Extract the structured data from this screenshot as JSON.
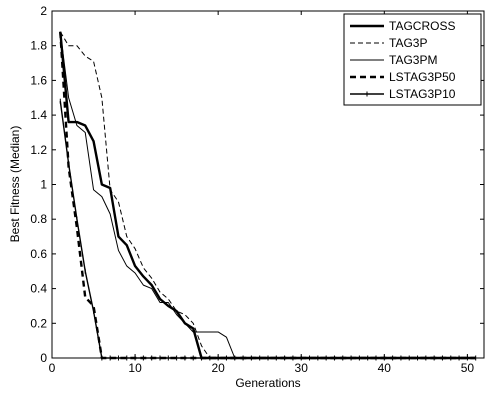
{
  "chart_data": {
    "type": "line",
    "xlabel": "Generations",
    "ylabel": "Best Fitness (Median)",
    "xlim": [
      0,
      52
    ],
    "ylim": [
      0,
      2
    ],
    "x_ticks": [
      0,
      10,
      20,
      30,
      40,
      50
    ],
    "y_ticks": [
      0,
      0.2,
      0.4,
      0.6,
      0.8,
      1,
      1.2,
      1.4,
      1.6,
      1.8,
      2
    ],
    "grid": false,
    "legend_position": "top-right",
    "series": [
      {
        "name": "TAGCROSS",
        "style": "thick-solid",
        "x": [
          1,
          2,
          3,
          4,
          5,
          6,
          7,
          8,
          9,
          10,
          11,
          12,
          13,
          14,
          15,
          16,
          17,
          18,
          19,
          20,
          25,
          30,
          35,
          40,
          45,
          51
        ],
        "y": [
          1.88,
          1.36,
          1.36,
          1.34,
          1.25,
          1.0,
          0.98,
          0.7,
          0.65,
          0.53,
          0.47,
          0.42,
          0.34,
          0.3,
          0.27,
          0.2,
          0.17,
          0.0,
          0.0,
          0.0,
          0.0,
          0.0,
          0.0,
          0.0,
          0.0,
          0.0
        ]
      },
      {
        "name": "TAG3P",
        "style": "dashed",
        "x": [
          1,
          2,
          3,
          4,
          5,
          6,
          7,
          8,
          9,
          10,
          11,
          12,
          13,
          14,
          15,
          16,
          17,
          18,
          19,
          20,
          25,
          30,
          35,
          40,
          45,
          51
        ],
        "y": [
          1.88,
          1.8,
          1.8,
          1.74,
          1.71,
          1.5,
          0.97,
          0.9,
          0.7,
          0.63,
          0.52,
          0.46,
          0.38,
          0.34,
          0.27,
          0.25,
          0.2,
          0.07,
          0.0,
          0.0,
          0.0,
          0.0,
          0.0,
          0.0,
          0.0,
          0.0
        ]
      },
      {
        "name": "TAG3PM",
        "style": "thin-solid",
        "x": [
          1,
          2,
          3,
          4,
          5,
          6,
          7,
          8,
          9,
          10,
          11,
          12,
          13,
          14,
          15,
          16,
          17,
          18,
          19,
          20,
          21,
          22,
          25,
          30,
          35,
          40,
          45,
          51
        ],
        "y": [
          1.88,
          1.5,
          1.34,
          1.3,
          0.97,
          0.93,
          0.83,
          0.62,
          0.53,
          0.49,
          0.42,
          0.4,
          0.32,
          0.32,
          0.25,
          0.2,
          0.15,
          0.15,
          0.15,
          0.15,
          0.12,
          0.0,
          0.0,
          0.0,
          0.0,
          0.0,
          0.0,
          0.0
        ]
      },
      {
        "name": "LSTAG3P50",
        "style": "thick-dashed",
        "x": [
          1,
          2,
          3,
          4,
          5,
          6,
          7,
          8,
          10,
          15,
          20,
          25,
          30,
          35,
          40,
          45,
          51
        ],
        "y": [
          1.88,
          1.1,
          0.75,
          0.35,
          0.3,
          0.0,
          0.0,
          0.0,
          0.0,
          0.0,
          0.0,
          0.0,
          0.0,
          0.0,
          0.0,
          0.0,
          0.0
        ]
      },
      {
        "name": "LSTAG3P10",
        "style": "solid-with-markers",
        "x": [
          1,
          2,
          3,
          4,
          5,
          6,
          7,
          8,
          9,
          10,
          11,
          12,
          13,
          14,
          15,
          16,
          17,
          18,
          19,
          20,
          21,
          22,
          23,
          24,
          25,
          26,
          27,
          28,
          29,
          30,
          31,
          32,
          33,
          34,
          35,
          36,
          37,
          38,
          39,
          40,
          41,
          42,
          43,
          44,
          45,
          46,
          47,
          48,
          49,
          50,
          51
        ],
        "y": [
          1.48,
          1.12,
          0.8,
          0.5,
          0.27,
          0.0,
          0.0,
          0.0,
          0.0,
          0.0,
          0.0,
          0.0,
          0.0,
          0.0,
          0.0,
          0.0,
          0.0,
          0.0,
          0.0,
          0.0,
          0.0,
          0.0,
          0.0,
          0.0,
          0.0,
          0.0,
          0.0,
          0.0,
          0.0,
          0.0,
          0.0,
          0.0,
          0.0,
          0.0,
          0.0,
          0.0,
          0.0,
          0.0,
          0.0,
          0.0,
          0.0,
          0.0,
          0.0,
          0.0,
          0.0,
          0.0,
          0.0,
          0.0,
          0.0,
          0.0,
          0.0
        ]
      }
    ]
  }
}
